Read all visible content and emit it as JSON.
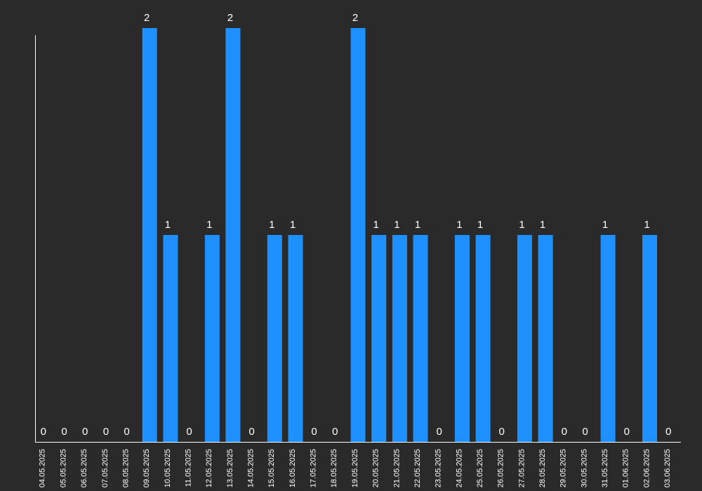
{
  "chart_data": {
    "type": "bar",
    "categories": [
      "04.05.2025",
      "05.05.2025",
      "06.05.2025",
      "07.05.2025",
      "08.05.2025",
      "09.05.2025",
      "10.05.2025",
      "11.05.2025",
      "12.05.2025",
      "13.05.2025",
      "14.05.2025",
      "15.05.2025",
      "16.05.2025",
      "17.05.2025",
      "18.05.2025",
      "19.05.2025",
      "20.05.2025",
      "21.05.2025",
      "22.05.2025",
      "23.05.2025",
      "24.05.2025",
      "25.05.2025",
      "26.05.2025",
      "27.05.2025",
      "28.05.2025",
      "29.05.2025",
      "30.05.2025",
      "31.05.2025",
      "01.06.2025",
      "02.06.2025",
      "03.06.2025"
    ],
    "values": [
      0,
      0,
      0,
      0,
      0,
      2,
      1,
      0,
      1,
      2,
      0,
      1,
      1,
      0,
      0,
      2,
      1,
      1,
      1,
      0,
      1,
      1,
      0,
      1,
      1,
      0,
      0,
      1,
      0,
      1,
      0
    ],
    "ylim": [
      0,
      2
    ],
    "grid": false,
    "colors": {
      "bar": "#1e90ff",
      "axis": "#ffffff",
      "text": "#ffffff",
      "background": "#2a2a2a"
    }
  }
}
